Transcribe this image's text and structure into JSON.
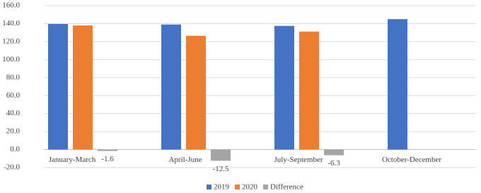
{
  "chart_data": {
    "type": "bar",
    "categories": [
      "January-March",
      "April-June",
      "July-September",
      "October-December"
    ],
    "series": [
      {
        "name": "2019",
        "color": "#4472c4",
        "values": [
          139.6,
          139.0,
          137.5,
          145.0
        ]
      },
      {
        "name": "2020",
        "color": "#ed7d31",
        "values": [
          138.0,
          126.5,
          131.2,
          null
        ]
      },
      {
        "name": "Difference",
        "color": "#a5a5a5",
        "values": [
          -1.6,
          -12.5,
          -6.3,
          null
        ],
        "data_labels": true
      }
    ],
    "ylim": [
      -20,
      160
    ],
    "yticks": [
      {
        "value": -20,
        "label": "-20.0"
      },
      {
        "value": 0,
        "label": "0.0"
      },
      {
        "value": 20,
        "label": "20.0"
      },
      {
        "value": 40,
        "label": "40.0"
      },
      {
        "value": 60,
        "label": "60.0"
      },
      {
        "value": 80,
        "label": "80.0"
      },
      {
        "value": 100,
        "label": "100.0"
      },
      {
        "value": 120,
        "label": "120.0"
      },
      {
        "value": 140,
        "label": "140.0"
      },
      {
        "value": 160,
        "label": "160.0"
      }
    ],
    "grid": true,
    "legend": "bottom"
  }
}
